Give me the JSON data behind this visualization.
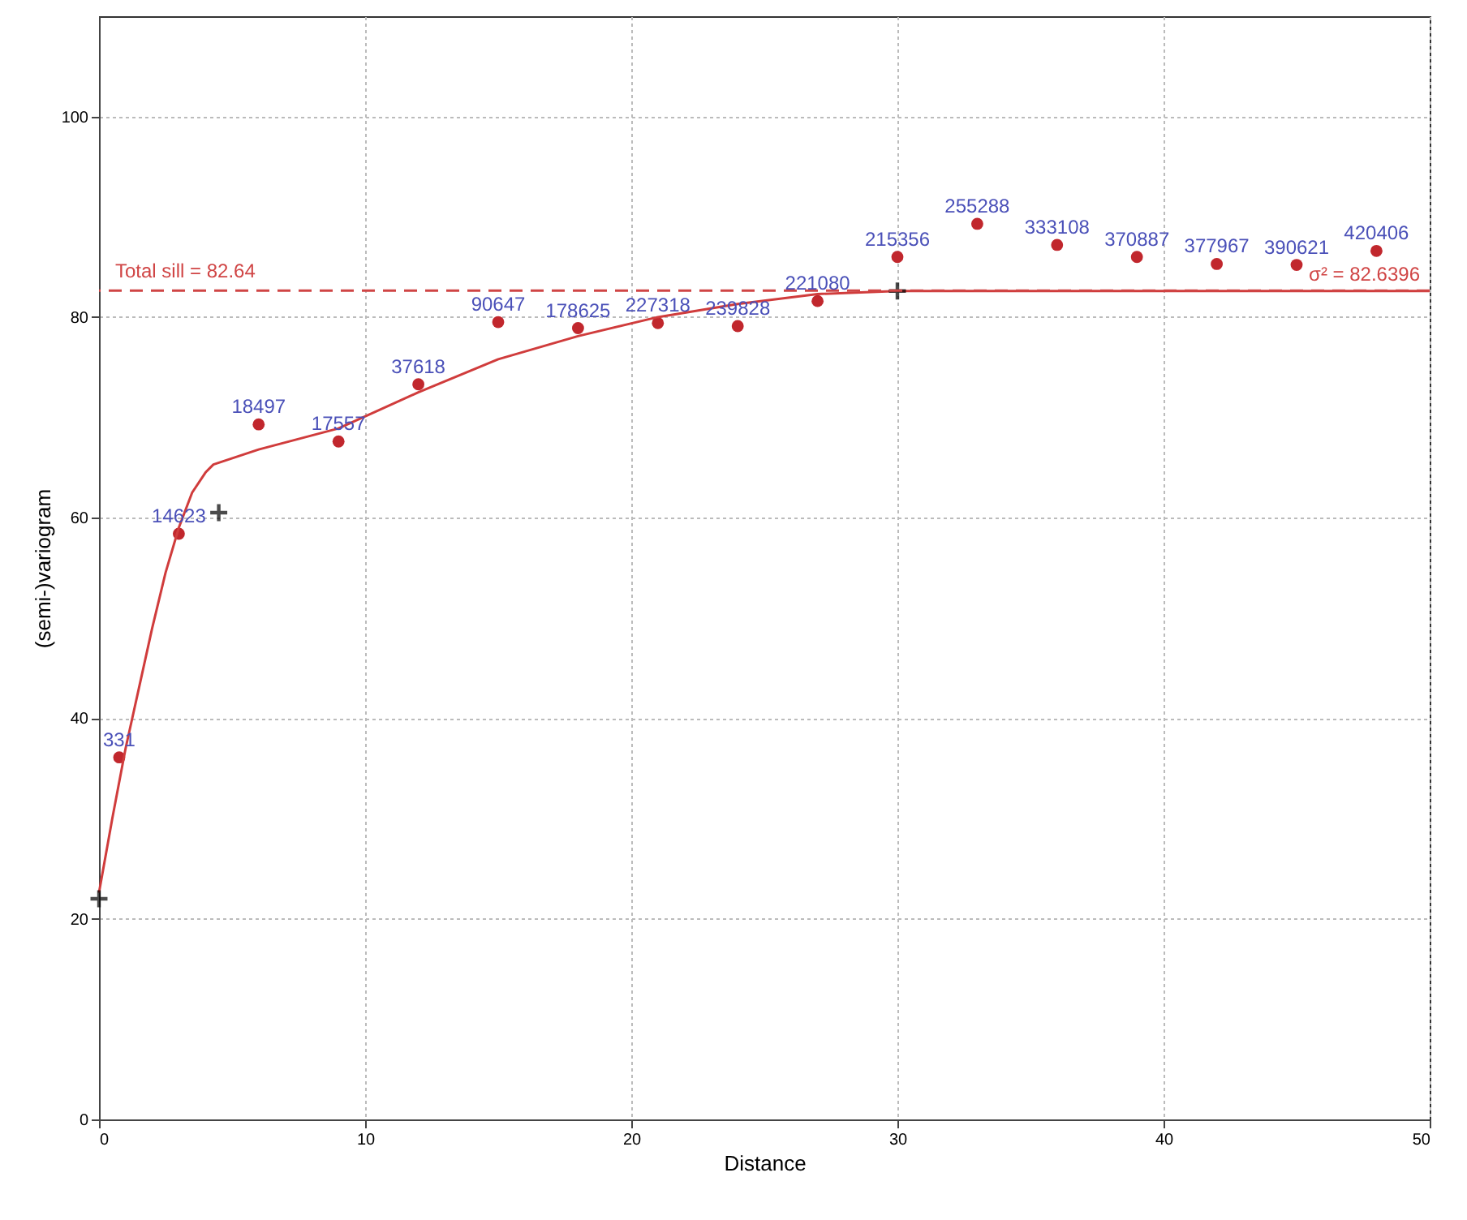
{
  "chart_data": {
    "type": "scatter",
    "xlabel": "Distance",
    "ylabel": "(semi-)variogram",
    "xlim": [
      0,
      50
    ],
    "ylim": [
      0,
      110
    ],
    "xticks": [
      0,
      10,
      20,
      30,
      40,
      50
    ],
    "yticks": [
      0,
      20,
      40,
      60,
      80,
      100
    ],
    "grid": true,
    "line_style": "solid",
    "series": [
      {
        "marker": "circle",
        "color": "#c1272d",
        "x": [
          0.76,
          3,
          6,
          9,
          12,
          15,
          18,
          21,
          24,
          27,
          30,
          33,
          36,
          39,
          42,
          45,
          48
        ],
        "values": [
          36.1,
          58.4,
          69.3,
          67.6,
          73.3,
          79.5,
          78.9,
          79.4,
          79.1,
          81.6,
          86.0,
          89.3,
          87.2,
          86.0,
          85.3,
          85.2,
          86.6
        ]
      },
      {
        "type": "line",
        "color": "#d03c3c",
        "x": [
          0,
          0.5,
          1,
          1.5,
          2,
          2.5,
          3,
          3.5,
          4,
          4.3,
          6,
          9,
          12,
          15,
          18,
          21,
          24,
          27,
          30,
          50
        ],
        "values": [
          22.6,
          30,
          37,
          43,
          49,
          54.5,
          59,
          62.5,
          64.5,
          65.3,
          66.8,
          68.9,
          72.5,
          75.8,
          78.1,
          80,
          81.3,
          82.3,
          82.6,
          82.6
        ]
      },
      {
        "type": "scatter",
        "marker": "cross",
        "color": "#000000",
        "x": [
          0,
          4.5,
          30
        ],
        "values": [
          22,
          60.5,
          82.6
        ]
      }
    ],
    "ref_lines": [
      {
        "axis": "y",
        "value": 82.64,
        "label": "Total sill = 82.64",
        "color": "#d04545",
        "line_style": "dashed"
      }
    ],
    "annotations": [
      {
        "text": "331",
        "x": 0.76,
        "y": 36.1
      },
      {
        "text": "14623",
        "x": 3,
        "y": 58.4
      },
      {
        "text": "18497",
        "x": 6,
        "y": 69.3
      },
      {
        "text": "17557",
        "x": 9,
        "y": 67.6
      },
      {
        "text": "37618",
        "x": 12,
        "y": 73.3
      },
      {
        "text": "90647",
        "x": 15,
        "y": 79.5
      },
      {
        "text": "178625",
        "x": 18,
        "y": 78.9
      },
      {
        "text": "227318",
        "x": 21,
        "y": 79.4
      },
      {
        "text": "239828",
        "x": 24,
        "y": 79.1
      },
      {
        "text": "221080",
        "x": 27,
        "y": 81.6
      },
      {
        "text": "215356",
        "x": 30,
        "y": 86.0
      },
      {
        "text": "255288",
        "x": 33,
        "y": 89.3
      },
      {
        "text": "333108",
        "x": 36,
        "y": 87.2
      },
      {
        "text": "370887",
        "x": 39,
        "y": 86.0
      },
      {
        "text": "377967",
        "x": 42,
        "y": 85.3
      },
      {
        "text": "390621",
        "x": 45,
        "y": 85.2
      },
      {
        "text": "420406",
        "x": 48,
        "y": 86.6
      },
      {
        "text": "σ² = 82.6396",
        "x": 50,
        "y": 82.64
      }
    ]
  }
}
